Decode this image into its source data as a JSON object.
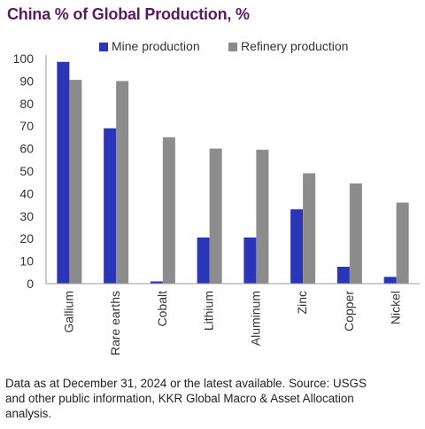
{
  "title": "China % of Global Production, %",
  "note": {
    "line1": "Data as at December 31, 2024 or the latest available. Source: USGS",
    "line2": "and other public information, KKR Global Macro & Asset Allocation",
    "line3": "analysis."
  },
  "colors": {
    "mine": "#2a35b8",
    "refinery": "#8c8c8c",
    "title": "#5a1a5e"
  },
  "chart_data": {
    "type": "bar",
    "categories": [
      "Gallium",
      "Rare earths",
      "Cobalt",
      "Lithium",
      "Aluminum",
      "Zinc",
      "Copper",
      "Nickel"
    ],
    "series": [
      {
        "name": "Mine production",
        "values": [
          98.5,
          69,
          1,
          20.5,
          20.5,
          33,
          7.5,
          3
        ]
      },
      {
        "name": "Refinery production",
        "values": [
          90.5,
          90,
          65,
          60,
          59.5,
          49,
          44.5,
          36
        ]
      }
    ],
    "yticks": [
      0,
      10,
      20,
      30,
      40,
      50,
      60,
      70,
      80,
      90,
      100
    ],
    "ylim": [
      0,
      100
    ],
    "grid": false,
    "legend_position": "top"
  }
}
